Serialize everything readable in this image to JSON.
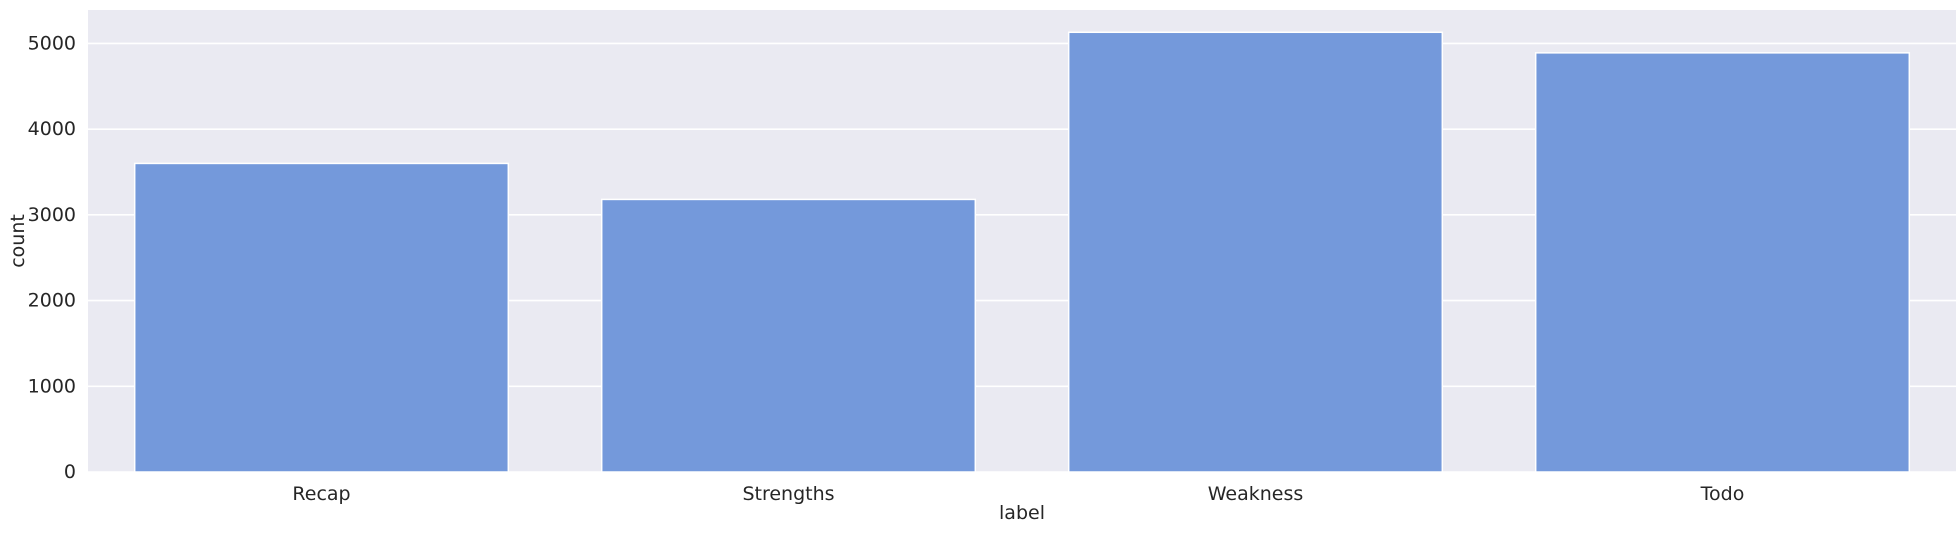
{
  "chart_data": {
    "type": "bar",
    "categories": [
      "Recap",
      "Strengths",
      "Weakness",
      "Todo"
    ],
    "values": [
      3600,
      3180,
      5130,
      4890
    ],
    "xlabel": "label",
    "ylabel": "count",
    "ylim": [
      0,
      5390
    ],
    "yticks": [
      0,
      1000,
      2000,
      3000,
      4000,
      5000
    ],
    "grid": true,
    "colors": {
      "bar": "#7499db",
      "plot_background": "#eaeaf2",
      "grid": "#ffffff",
      "text": "#262626"
    }
  }
}
